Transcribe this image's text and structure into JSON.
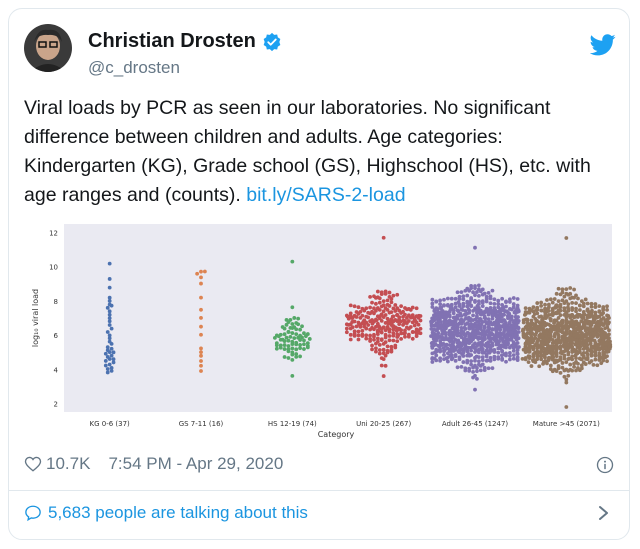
{
  "tweet": {
    "display_name": "Christian Drosten",
    "handle": "@c_drosten",
    "text": "Viral loads by PCR as seen in our laboratories. No significant difference between children and adults. Age categories: Kindergarten (KG), Grade school (GS), Highschool (HS), etc. with age ranges and (counts). ",
    "link": "bit.ly/SARS-2-load",
    "likes": "10.7K",
    "timestamp": "7:54 PM - Apr 29, 2020",
    "talking": "5,683 people are talking about this",
    "icons": [
      "avatar",
      "verified-badge-icon",
      "twitter-bird-icon",
      "heart-icon",
      "info-icon",
      "speech-bubble-icon",
      "chevron-right-icon"
    ],
    "colors": {
      "link": "#1b95e0",
      "text": "#14171a",
      "muted": "#657786"
    }
  },
  "chart_data": {
    "type": "scatter",
    "xlabel": "Category",
    "ylabel": "log₁₀ viral load",
    "ylim": [
      1.5,
      12.5
    ],
    "yticks": [
      2,
      4,
      6,
      8,
      10,
      12
    ],
    "grid": false,
    "categories": [
      "KG 0-6 (37)",
      "GS 7-11 (16)",
      "HS 12-19 (74)",
      "Uni 20-25 (267)",
      "Adult 26-45 (1247)",
      "Mature >45 (2071)"
    ],
    "series": [
      {
        "category": "KG 0-6 (37)",
        "color": "#4c72b0",
        "min": 3.8,
        "max": 10.2,
        "values": [
          3.8,
          3.9,
          4.0,
          4.1,
          4.2,
          4.3,
          4.4,
          4.5,
          4.6,
          4.6,
          4.7,
          4.8,
          4.9,
          5.0,
          5.0,
          5.1,
          5.2,
          5.3,
          5.5,
          5.6,
          5.8,
          6.0,
          6.2,
          6.4,
          6.6,
          6.8,
          7.0,
          7.2,
          7.4,
          7.6,
          7.7,
          7.8,
          8.0,
          8.2,
          8.8,
          9.3,
          10.2
        ]
      },
      {
        "category": "GS 7-11 (16)",
        "color": "#dd8452",
        "min": 3.9,
        "max": 9.7,
        "values": [
          3.9,
          4.2,
          4.5,
          4.8,
          5.0,
          5.2,
          6.0,
          6.5,
          7.0,
          7.5,
          8.2,
          9.0,
          9.4,
          9.6,
          9.7,
          9.7
        ]
      },
      {
        "category": "HS 12-19 (74)",
        "color": "#55a868",
        "min": 3.6,
        "max": 10.3
      },
      {
        "category": "Uni 20-25 (267)",
        "color": "#c44e52",
        "min": 3.6,
        "max": 11.7
      },
      {
        "category": "Adult 26-45 (1247)",
        "color": "#8172b3",
        "min": 2.8,
        "max": 11.1
      },
      {
        "category": "Mature >45 (2071)",
        "color": "#937860",
        "min": 1.8,
        "max": 11.7
      }
    ]
  }
}
